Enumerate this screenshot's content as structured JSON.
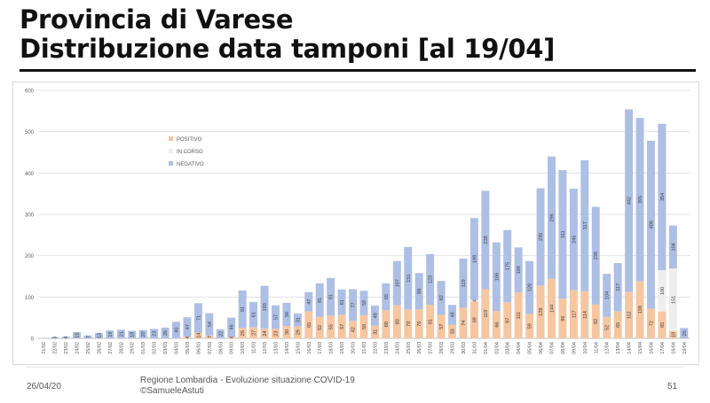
{
  "slide": {
    "title_line1": "Provincia di Varese",
    "title_line2": "Distribuzione data tamponi [al 19/04]"
  },
  "footer": {
    "date": "26/04/20",
    "source_line1": "Regione Lombardia - Evoluzione situazione COVID-19",
    "source_line2": "©SamueleAstuti",
    "page_number": "51"
  },
  "chart_data": {
    "type": "bar",
    "stacked": true,
    "title": "",
    "xlabel": "",
    "ylabel": "",
    "ylim": [
      0,
      600
    ],
    "yticks": [
      0,
      100,
      200,
      300,
      400,
      500,
      600
    ],
    "grid": true,
    "legend_position": "top-left",
    "categories": [
      "21/02",
      "22/02",
      "23/02",
      "24/02",
      "25/02",
      "26/02",
      "27/02",
      "28/02",
      "29/02",
      "01/03",
      "02/03",
      "03/03",
      "04/03",
      "05/03",
      "06/03",
      "07/03",
      "08/03",
      "09/03",
      "10/03",
      "11/03",
      "12/03",
      "13/03",
      "14/03",
      "15/03",
      "16/03",
      "17/03",
      "18/03",
      "19/03",
      "20/03",
      "21/03",
      "22/03",
      "23/03",
      "24/03",
      "25/03",
      "26/03",
      "27/03",
      "28/03",
      "29/03",
      "30/03",
      "31/03",
      "01/04",
      "02/04",
      "03/04",
      "04/04",
      "05/04",
      "06/04",
      "07/04",
      "08/04",
      "09/04",
      "10/04",
      "11/04",
      "12/04",
      "13/04",
      "14/04",
      "15/04",
      "16/04",
      "17/04",
      "18/04",
      "19/04"
    ],
    "series": [
      {
        "name": "POSITIVO",
        "color": "#f6c6a1",
        "values": [
          0,
          0,
          0,
          0,
          0,
          0,
          0,
          0,
          0,
          0,
          0,
          0,
          0,
          4,
          14,
          7,
          0,
          4,
          25,
          27,
          24,
          23,
          30,
          29,
          65,
          52,
          55,
          57,
          42,
          56,
          31,
          68,
          80,
          70,
          70,
          81,
          57,
          33,
          74,
          89,
          119,
          66,
          87,
          111,
          59,
          128,
          144,
          96,
          117,
          114,
          82,
          52,
          65,
          112,
          138,
          72,
          65,
          18,
          0
        ]
      },
      {
        "name": "IN CORSO",
        "color": "#eeeeee",
        "values": [
          0,
          0,
          0,
          0,
          0,
          0,
          0,
          0,
          0,
          0,
          0,
          0,
          0,
          0,
          0,
          0,
          0,
          0,
          0,
          0,
          0,
          0,
          0,
          0,
          0,
          0,
          0,
          0,
          0,
          0,
          0,
          0,
          0,
          0,
          0,
          0,
          0,
          0,
          0,
          4,
          0,
          0,
          0,
          0,
          0,
          0,
          0,
          0,
          0,
          0,
          0,
          0,
          0,
          0,
          0,
          0,
          100,
          151,
          0
        ]
      },
      {
        "name": "NEGATIVO",
        "color": "#adbfe5",
        "values": [
          0,
          3,
          4,
          15,
          7,
          13,
          19,
          21,
          18,
          20,
          23,
          26,
          40,
          47,
          71,
          54,
          22,
          46,
          91,
          61,
          103,
          57,
          56,
          31,
          47,
          81,
          91,
          61,
          77,
          59,
          48,
          65,
          107,
          151,
          88,
          123,
          82,
          48,
          119,
          198,
          238,
          166,
          175,
          109,
          128,
          235,
          296,
          311,
          245,
          317,
          236,
          104,
          117,
          442,
          395,
          406,
          354,
          104,
          25
        ]
      }
    ],
    "data_labels": [
      [
        "",
        "",
        "",
        "",
        "",
        "",
        "",
        "",
        "",
        "",
        "",
        "",
        "",
        "",
        "",
        "",
        "",
        "",
        "",
        "",
        "",
        "",
        "",
        "",
        "",
        "",
        "",
        "",
        "",
        "",
        "",
        "",
        "",
        "",
        "",
        "",
        "",
        "",
        "",
        "",
        "",
        "",
        "",
        "",
        "",
        "",
        "",
        "",
        "",
        "",
        "",
        "",
        "",
        "",
        "",
        "",
        "",
        "",
        ""
      ],
      [
        "",
        "",
        "",
        "",
        "",
        "",
        "",
        "",
        "",
        "",
        "",
        "",
        "",
        "",
        "",
        "",
        "",
        "",
        "",
        "",
        "",
        "",
        "",
        "",
        "",
        "",
        "",
        "",
        "",
        "",
        "",
        "",
        "",
        "",
        "",
        "",
        "",
        "",
        "",
        "",
        "",
        "",
        "",
        "",
        "",
        "",
        "",
        "",
        "",
        "",
        "",
        "",
        "",
        "",
        "",
        "",
        "",
        "",
        ""
      ],
      [
        "",
        "",
        "",
        "",
        "",
        "",
        "",
        "",
        "",
        "",
        "",
        "",
        "",
        "",
        "",
        "",
        "",
        "",
        "",
        "",
        "",
        "",
        "",
        "",
        "",
        "",
        "",
        "",
        "",
        "",
        "",
        "",
        "",
        "",
        "",
        "",
        "",
        "",
        "",
        "",
        "",
        "",
        "",
        "",
        "",
        "",
        "",
        "",
        "",
        "",
        "",
        "",
        "",
        "",
        "",
        "",
        "",
        "",
        ""
      ]
    ]
  }
}
